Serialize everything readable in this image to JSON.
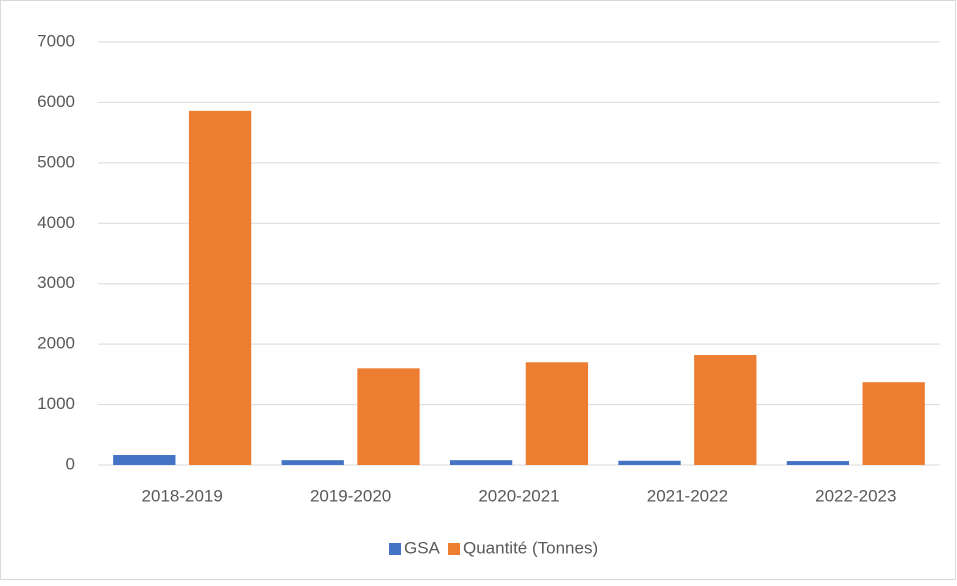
{
  "chart_data": {
    "type": "bar",
    "categories": [
      "2018-2019",
      "2019-2020",
      "2020-2021",
      "2021-2022",
      "2022-2023"
    ],
    "series": [
      {
        "name": "GSA",
        "color": "#4472c4",
        "values": [
          165,
          80,
          80,
          70,
          65
        ]
      },
      {
        "name": "Quantité (Tonnes)",
        "color": "#ed7d31",
        "values": [
          5860,
          1600,
          1700,
          1820,
          1370
        ]
      }
    ],
    "ylim": [
      0,
      7000
    ],
    "yticks": [
      0,
      1000,
      2000,
      3000,
      4000,
      5000,
      6000,
      7000
    ],
    "grid": true,
    "legend": "bottom"
  }
}
